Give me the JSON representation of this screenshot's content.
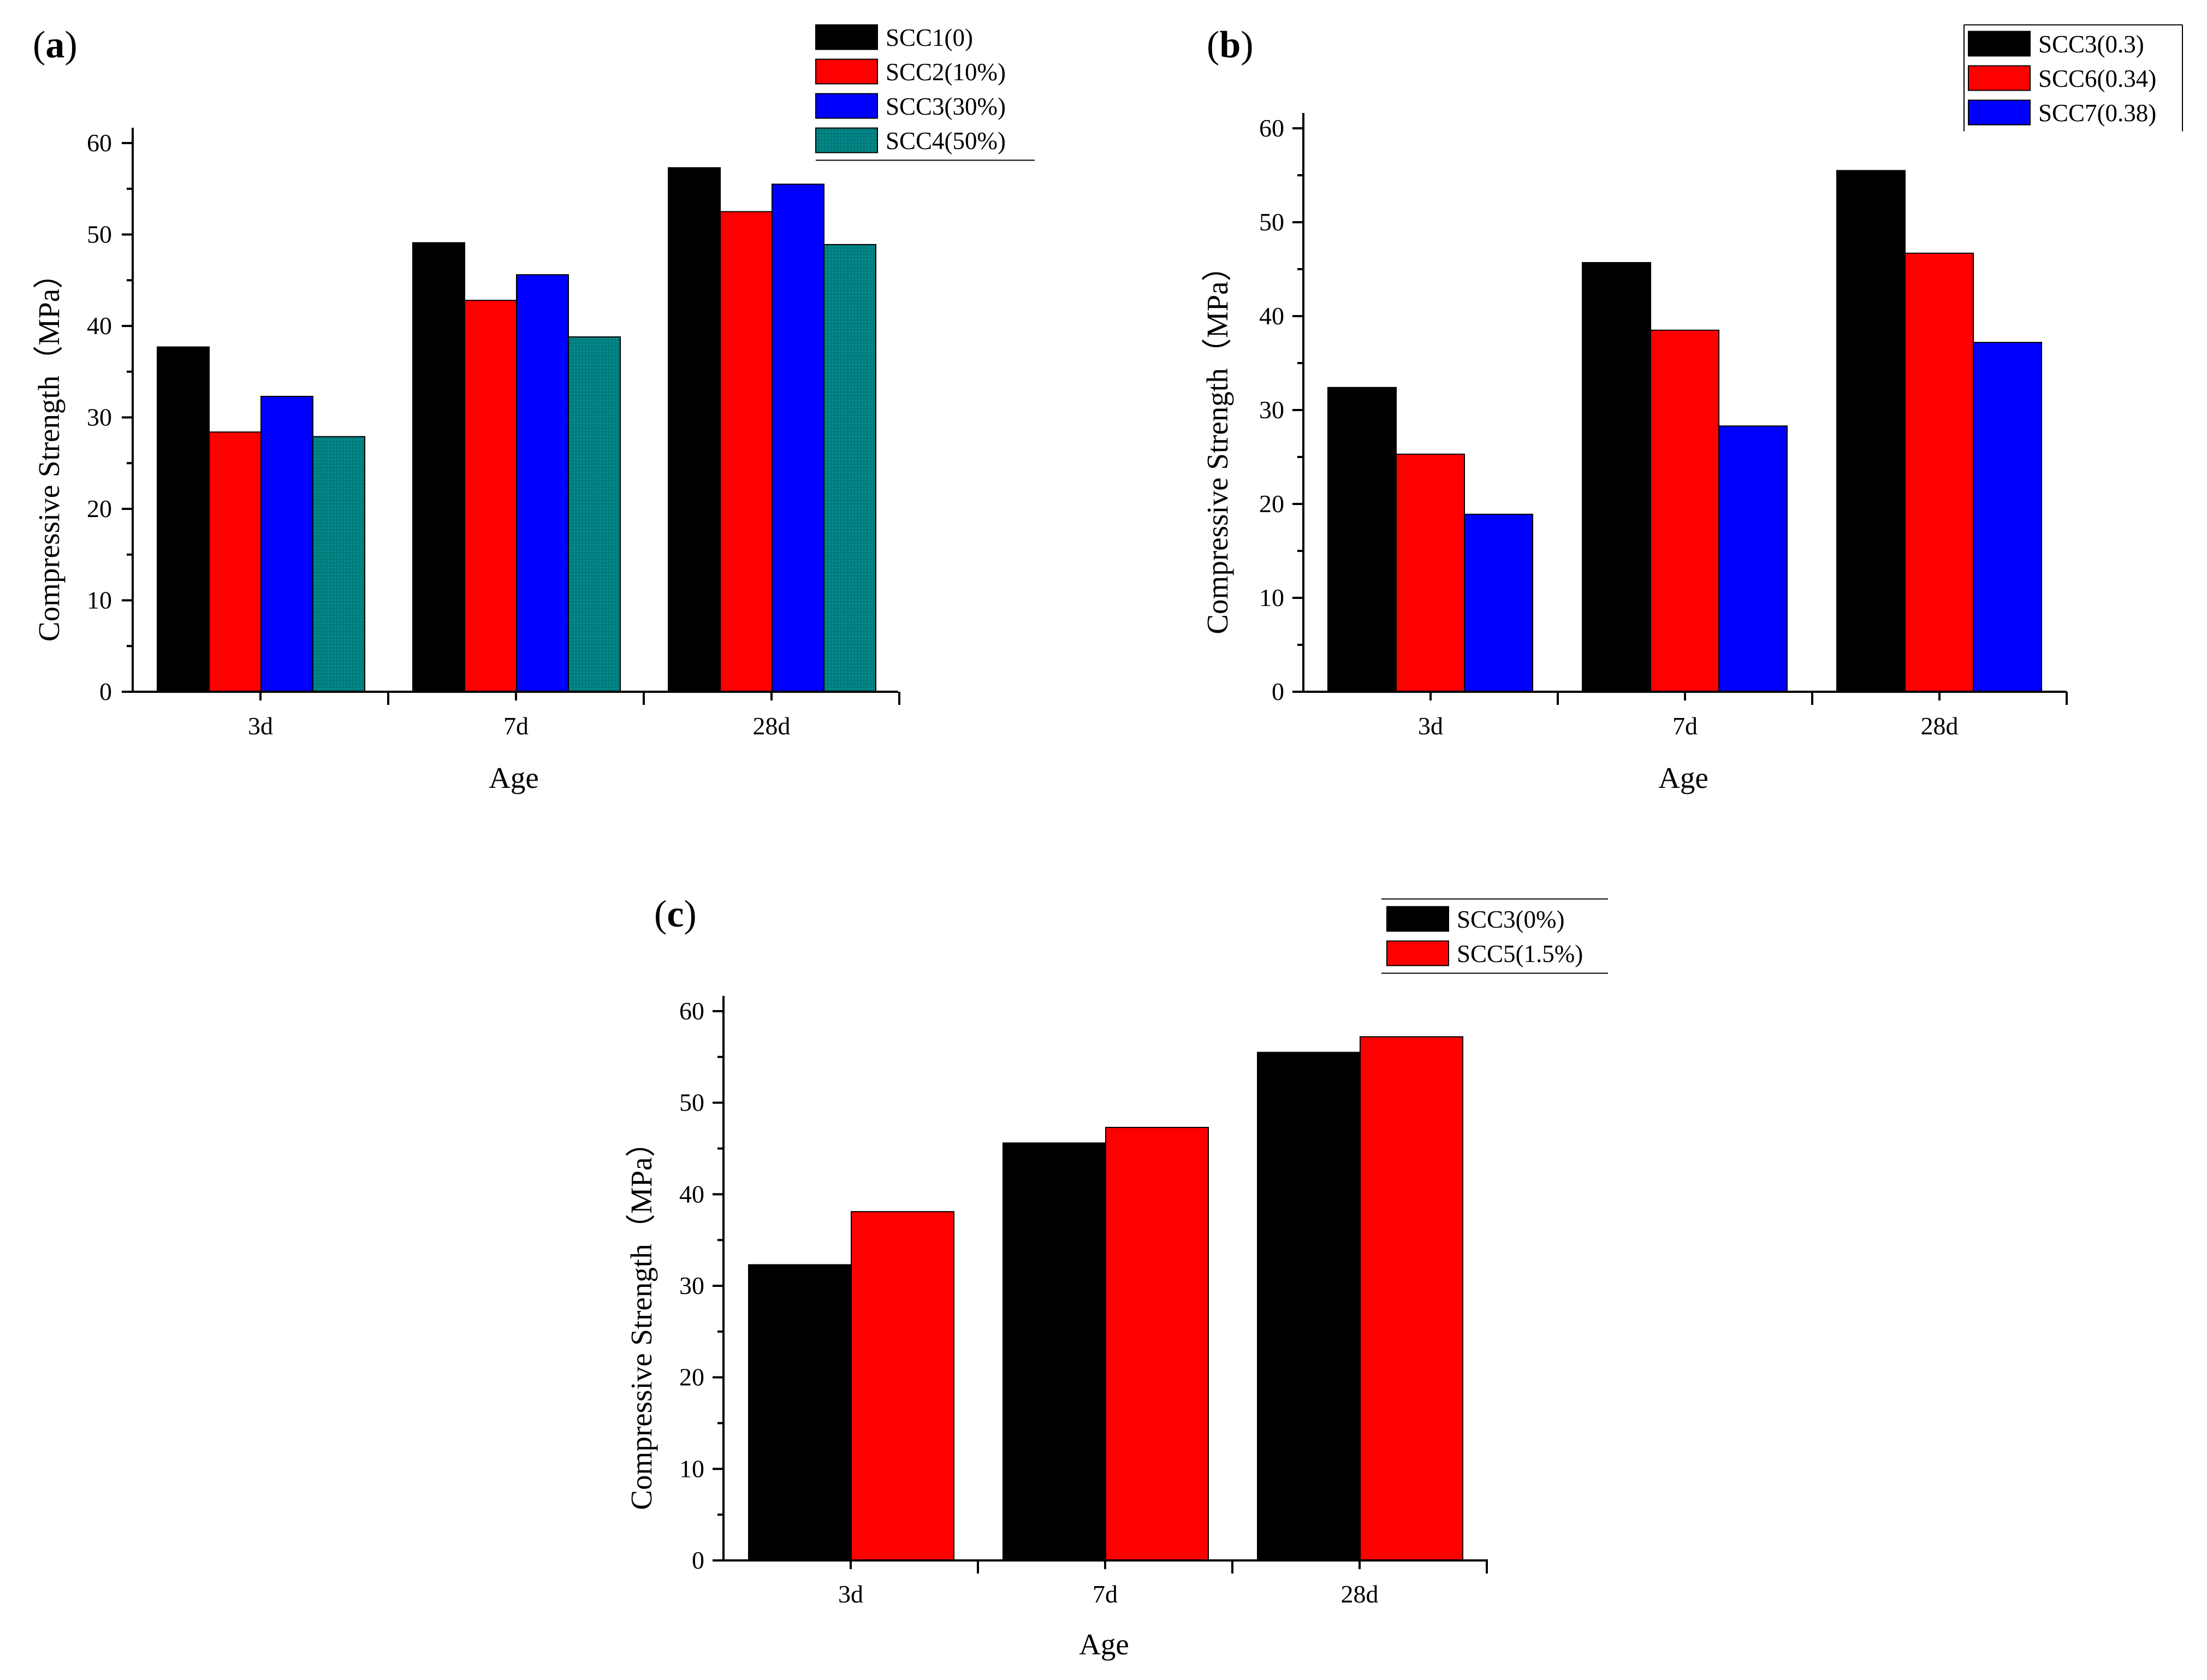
{
  "figure": {
    "colors": {
      "black": "#000000",
      "red": "#ff0000",
      "blue": "#0000ff",
      "teal": "#008080",
      "background": "#ffffff"
    }
  },
  "chart_data": [
    {
      "panel": "(a)",
      "panel_letter": "a",
      "type": "bar",
      "title": "",
      "xlabel": "Age",
      "ylabel": "Compressive Strength（MPa）",
      "categories": [
        "3d",
        "7d",
        "28d"
      ],
      "ylim": [
        0,
        60
      ],
      "yticks": [
        0,
        10,
        20,
        30,
        40,
        50,
        60
      ],
      "grid": false,
      "legend_position": "top-right",
      "series": [
        {
          "name": "SCC1(0)",
          "color": "#000000",
          "values": [
            37.7,
            49.1,
            57.3
          ]
        },
        {
          "name": "SCC2(10%)",
          "color": "#ff0000",
          "values": [
            28.4,
            42.8,
            52.5
          ]
        },
        {
          "name": "SCC3(30%)",
          "color": "#0000ff",
          "values": [
            32.3,
            45.6,
            55.5
          ]
        },
        {
          "name": "SCC4(50%)",
          "color": "#008080",
          "values": [
            27.9,
            38.8,
            48.9
          ]
        }
      ]
    },
    {
      "panel": "(b)",
      "panel_letter": "b",
      "type": "bar",
      "title": "",
      "xlabel": "Age",
      "ylabel": "Compressive Strength（MPa）",
      "categories": [
        "3d",
        "7d",
        "28d"
      ],
      "ylim": [
        0,
        60
      ],
      "yticks": [
        0,
        10,
        20,
        30,
        40,
        50,
        60
      ],
      "grid": false,
      "legend_position": "top-right",
      "series": [
        {
          "name": "SCC3(0.3)",
          "color": "#000000",
          "values": [
            32.4,
            45.7,
            55.5
          ]
        },
        {
          "name": "SCC6(0.34)",
          "color": "#ff0000",
          "values": [
            25.3,
            38.5,
            46.7
          ]
        },
        {
          "name": "SCC7(0.38)",
          "color": "#0000ff",
          "values": [
            18.9,
            28.3,
            37.2
          ]
        }
      ]
    },
    {
      "panel": "(c)",
      "panel_letter": "c",
      "type": "bar",
      "title": "",
      "xlabel": "Age",
      "ylabel": "Compressive Strength（MPa）",
      "categories": [
        "3d",
        "7d",
        "28d"
      ],
      "ylim": [
        0,
        60
      ],
      "yticks": [
        0,
        10,
        20,
        30,
        40,
        50,
        60
      ],
      "grid": false,
      "legend_position": "top-right",
      "series": [
        {
          "name": "SCC3(0%)",
          "color": "#000000",
          "values": [
            32.3,
            45.6,
            55.5
          ]
        },
        {
          "name": "SCC5(1.5%)",
          "color": "#ff0000",
          "values": [
            38.1,
            47.3,
            57.2
          ]
        }
      ]
    }
  ]
}
